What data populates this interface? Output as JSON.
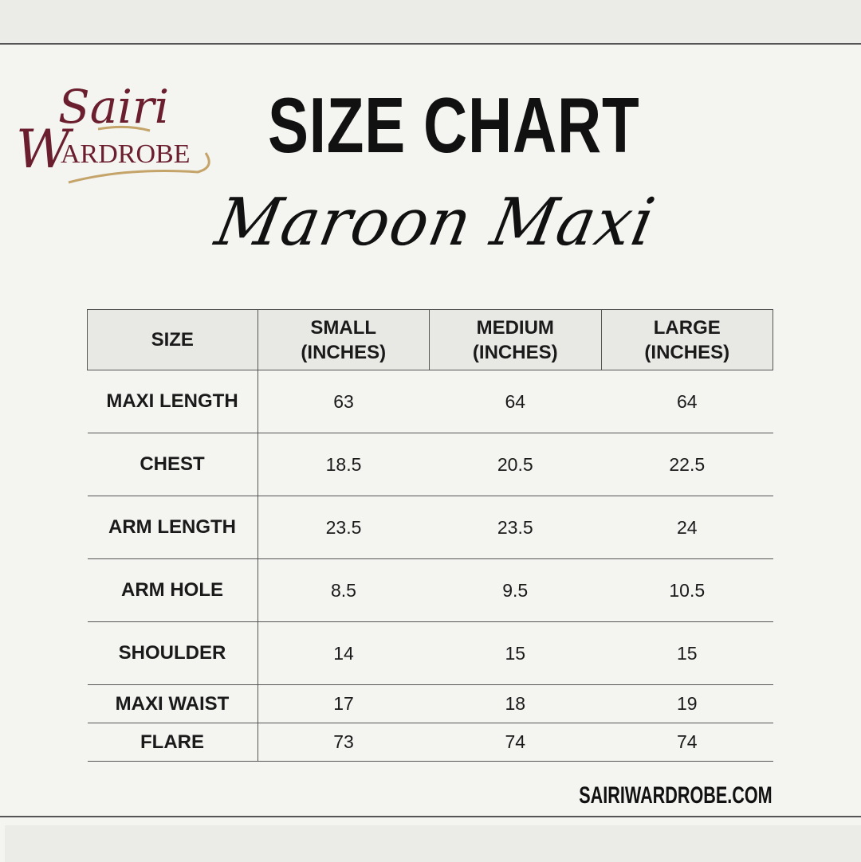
{
  "brand": {
    "logo_text_line1": "Sairi",
    "logo_text_line2": "Wardrobe",
    "maroon": "#6b1e2e",
    "gold": "#c4a468"
  },
  "header": {
    "title": "SIZE CHART",
    "subtitle": "Maroon Maxi"
  },
  "table": {
    "columns": [
      {
        "line1": "SIZE",
        "line2": ""
      },
      {
        "line1": "SMALL",
        "line2": "(INCHES)"
      },
      {
        "line1": "MEDIUM",
        "line2": "(INCHES)"
      },
      {
        "line1": "LARGE",
        "line2": "(INCHES)"
      }
    ],
    "rows": [
      {
        "label": "MAXI LENGTH",
        "small": "63",
        "medium": "64",
        "large": "64"
      },
      {
        "label": "CHEST",
        "small": "18.5",
        "medium": "20.5",
        "large": "22.5"
      },
      {
        "label": "ARM LENGTH",
        "small": "23.5",
        "medium": "23.5",
        "large": "24"
      },
      {
        "label": "ARM HOLE",
        "small": "8.5",
        "medium": "9.5",
        "large": "10.5"
      },
      {
        "label": "SHOULDER",
        "small": "14",
        "medium": "15",
        "large": "15"
      },
      {
        "label": "MAXI WAIST",
        "small": "17",
        "medium": "18",
        "large": "19"
      },
      {
        "label": "FLARE",
        "small": "73",
        "medium": "74",
        "large": "74"
      }
    ]
  },
  "footer": {
    "website": "SAIRIWARDROBE.COM"
  }
}
